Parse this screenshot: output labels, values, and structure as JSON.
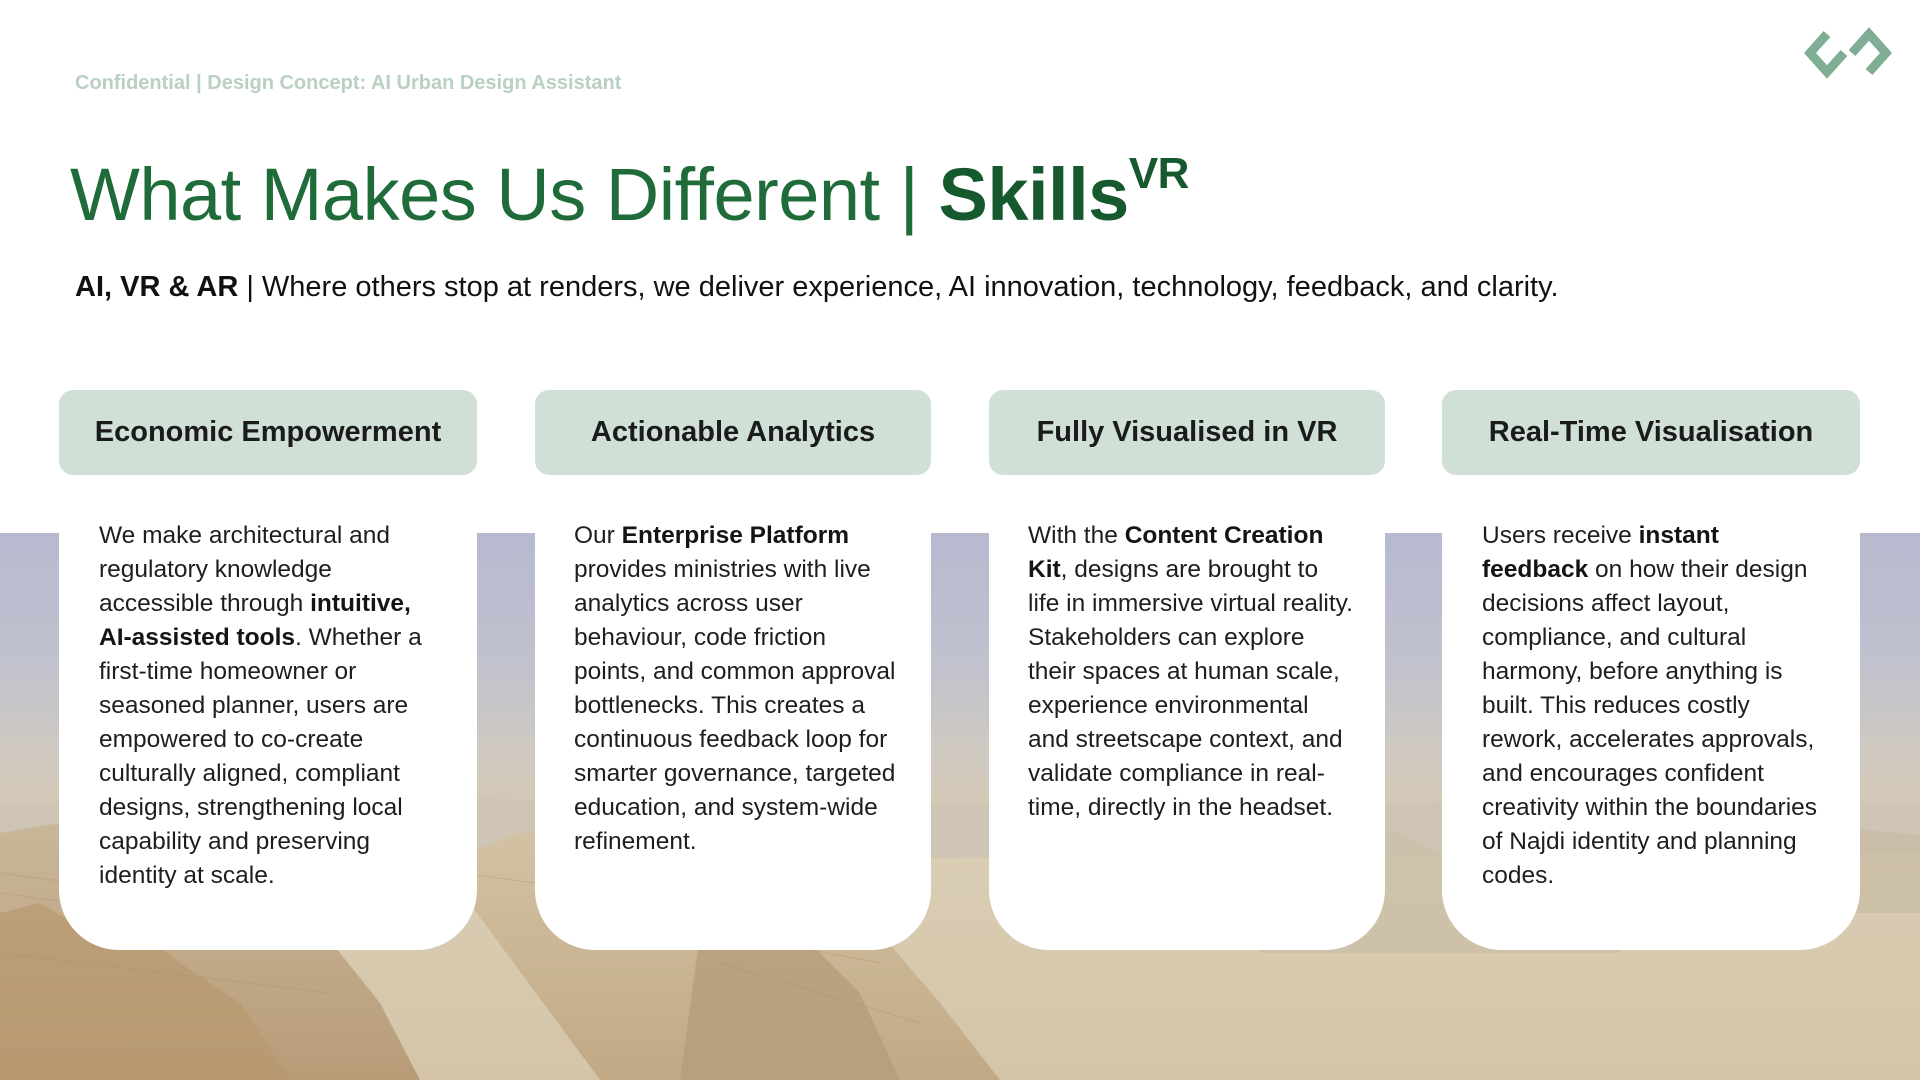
{
  "header": {
    "confidential": "Confidential | Design Concept: AI Urban Design Assistant",
    "logo_icon": "linked-diamonds-logo-icon",
    "brand_color": "#1f6b3a"
  },
  "title": {
    "prefix": "What Makes Us Different | ",
    "brand": "Skills",
    "brand_sup": "VR"
  },
  "subtitle": {
    "bold": "AI, VR & AR",
    "rest": " | Where others stop at renders, we deliver experience, AI innovation, technology, feedback, and clarity."
  },
  "columns": [
    {
      "heading": "Economic Empowerment",
      "body": [
        {
          "t": "We make architectural and regulatory knowledge accessible through ",
          "b": false
        },
        {
          "t": "intuitive, AI-assisted tools",
          "b": true
        },
        {
          "t": ". Whether a first-time homeowner or seasoned planner, users are empowered to co-create culturally aligned, compliant designs, strengthening local capability and preserving identity at scale.",
          "b": false
        }
      ]
    },
    {
      "heading": "Actionable Analytics",
      "body": [
        {
          "t": "Our ",
          "b": false
        },
        {
          "t": "Enterprise Platform",
          "b": true
        },
        {
          "t": " provides ministries with live analytics across user behaviour, code friction points, and common approval bottlenecks. This creates a continuous feedback loop for smarter governance, targeted education, and system-wide refinement.",
          "b": false
        }
      ]
    },
    {
      "heading": "Fully Visualised in VR",
      "body": [
        {
          "t": "With the ",
          "b": false
        },
        {
          "t": "Content Creation Kit",
          "b": true
        },
        {
          "t": ", designs are brought to life in immersive virtual reality. Stakeholders can explore their spaces at human scale, experience environmental and streetscape context, and validate compliance in real-time, directly in the headset.",
          "b": false
        }
      ]
    },
    {
      "heading": "Real-Time Visualisation",
      "body": [
        {
          "t": "Users receive ",
          "b": false
        },
        {
          "t": "instant feedback",
          "b": true
        },
        {
          "t": " on how their design decisions affect layout, compliance, and cultural harmony, before anything is built. This reduces costly rework, accelerates approvals, and encourages confident creativity within the boundaries of Najdi identity and planning codes.",
          "b": false
        }
      ]
    }
  ]
}
